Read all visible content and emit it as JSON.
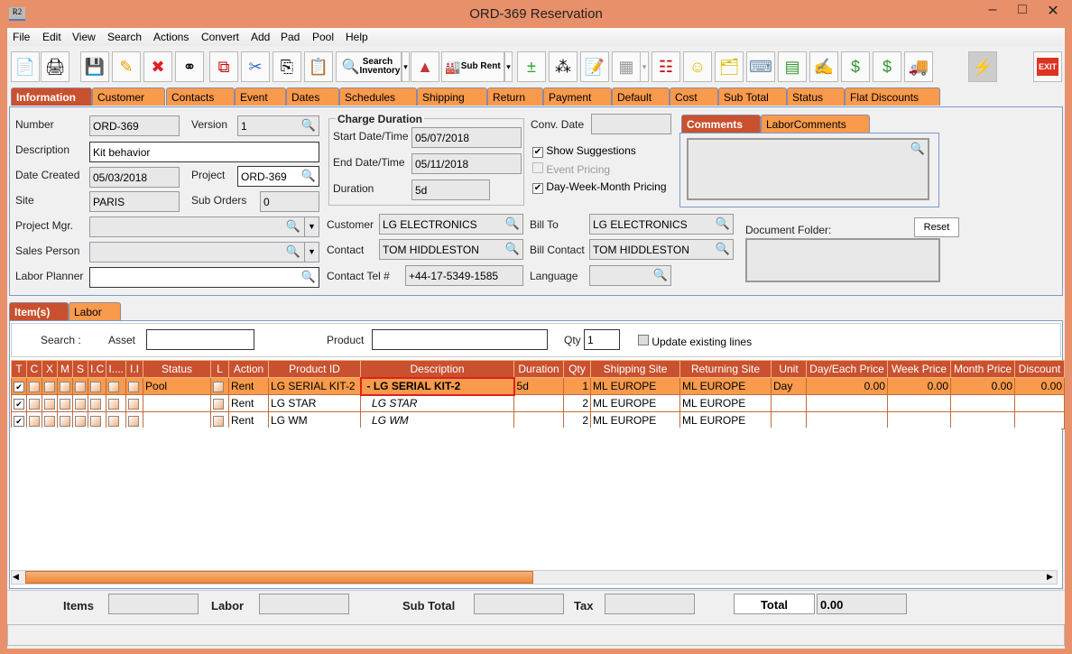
{
  "window": {
    "title": "ORD-369 Reservation",
    "app_icon": "R2"
  },
  "menu": [
    "File",
    "Edit",
    "View",
    "Search",
    "Actions",
    "Convert",
    "Add",
    "Pad",
    "Pool",
    "Help"
  ],
  "toolbar": {
    "search_inventory": "Search Inventory",
    "sub_rent": "Sub Rent",
    "exit": "EXIT"
  },
  "tabs": [
    "Information",
    "Customer",
    "Contacts",
    "Event",
    "Dates",
    "Schedules",
    "Shipping",
    "Return",
    "Payment",
    "Default",
    "Cost",
    "Sub Total",
    "Status",
    "Flat Discounts"
  ],
  "info": {
    "number_label": "Number",
    "number": "ORD-369",
    "version_label": "Version",
    "version": "1",
    "description_label": "Description",
    "description": "Kit behavior",
    "date_created_label": "Date Created",
    "date_created": "05/03/2018",
    "project_label": "Project",
    "project": "ORD-369",
    "site_label": "Site",
    "site": "PARIS",
    "sub_orders_label": "Sub Orders",
    "sub_orders": "0",
    "project_mgr_label": "Project Mgr.",
    "sales_person_label": "Sales Person",
    "labor_planner_label": "Labor Planner",
    "charge_duration_title": "Charge Duration",
    "start_label": "Start Date/Time",
    "start": "05/07/2018",
    "end_label": "End Date/Time",
    "end": "05/11/2018",
    "duration_label": "Duration",
    "duration": "5d",
    "conv_date_label": "Conv. Date",
    "show_suggestions": "Show Suggestions",
    "event_pricing": "Event Pricing",
    "dwm_pricing": "Day-Week-Month Pricing",
    "customer_label": "Customer",
    "customer": "LG ELECTRONICS",
    "contact_label": "Contact",
    "contact": "TOM HIDDLESTON",
    "contact_tel_label": "Contact Tel #",
    "contact_tel": "+44-17-5349-1585",
    "bill_to_label": "Bill To",
    "bill_to": "LG ELECTRONICS",
    "bill_contact_label": "Bill Contact",
    "bill_contact": "TOM HIDDLESTON",
    "language_label": "Language",
    "comments_tab": "Comments",
    "labor_comments_tab": "LaborComments",
    "document_folder_label": "Document Folder:",
    "reset": "Reset"
  },
  "lower_tabs": [
    "Item(s)",
    "Labor"
  ],
  "search": {
    "label": "Search :",
    "asset_label": "Asset",
    "product_label": "Product",
    "qty_label": "Qty",
    "qty": "1",
    "update_existing": "Update existing lines"
  },
  "grid": {
    "columns": [
      "T",
      "C",
      "X",
      "M",
      "S",
      "I.C",
      "I....",
      "I.I",
      "Status",
      "L",
      "Action",
      "Product ID",
      "Description",
      "Duration",
      "Qty",
      "Shipping Site",
      "Returning Site",
      "Unit",
      "Day/Each Price",
      "Week Price",
      "Month Price",
      "Discount"
    ],
    "rows": [
      {
        "status": "Pool",
        "action": "Rent",
        "product_id": "LG SERIAL KIT-2",
        "description": "-  LG SERIAL KIT-2",
        "duration": "5d",
        "qty": "1",
        "shipping": "ML EUROPE",
        "returning": "ML EUROPE",
        "unit": "Day",
        "day": "0.00",
        "week": "0.00",
        "month": "0.00",
        "discount": "0.00"
      },
      {
        "status": "",
        "action": "Rent",
        "product_id": "LG STAR",
        "description": "LG STAR",
        "duration": "",
        "qty": "2",
        "shipping": "ML EUROPE",
        "returning": "ML EUROPE",
        "unit": "",
        "day": "",
        "week": "",
        "month": "",
        "discount": ""
      },
      {
        "status": "",
        "action": "Rent",
        "product_id": "LG WM",
        "description": "LG WM",
        "duration": "",
        "qty": "2",
        "shipping": "ML EUROPE",
        "returning": "ML EUROPE",
        "unit": "",
        "day": "",
        "week": "",
        "month": "",
        "discount": ""
      }
    ]
  },
  "totals": {
    "items_label": "Items",
    "labor_label": "Labor",
    "sub_total_label": "Sub Total",
    "tax_label": "Tax",
    "total_label": "Total",
    "total": "0.00"
  },
  "colors": {
    "title_bar": "#e8906a",
    "tab": "#f99a4c",
    "active_tab": "#c9512f"
  }
}
